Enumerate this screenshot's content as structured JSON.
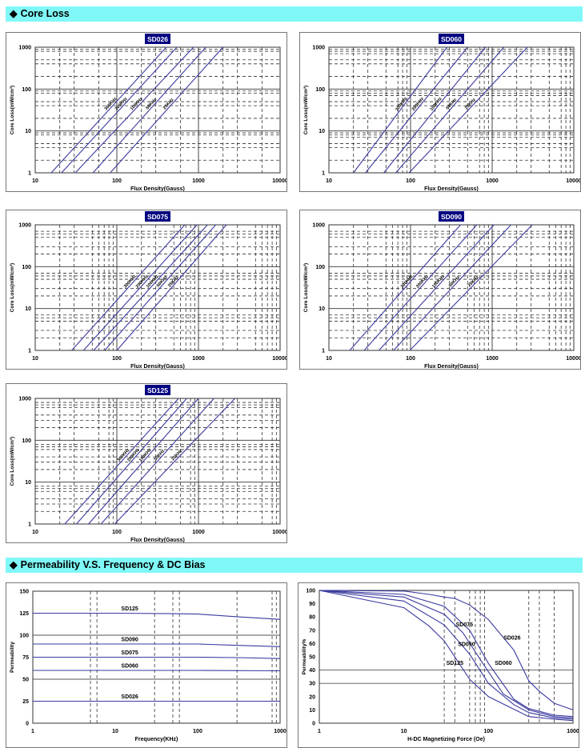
{
  "sections": {
    "core_loss": {
      "title": "Core Loss",
      "icon": "diamond-icon"
    },
    "permeability": {
      "title": "Permeability V.S. Frequency & DC Bias",
      "icon": "diamond-icon"
    }
  },
  "colors": {
    "header_bg": "#80f8f8",
    "series": "#3a3aa0",
    "badge_bg": "#000080"
  },
  "chart_data": [
    {
      "type": "line",
      "title": "SD026",
      "xlabel": "Flux Density(Gauss)",
      "ylabel": "Core Loss(mW/cm³)",
      "xscale": "log",
      "yscale": "log",
      "xlim": [
        10,
        10000
      ],
      "ylim": [
        1,
        1000
      ],
      "xticks": [
        "10",
        "100",
        "1000",
        "10000"
      ],
      "yticks": [
        "1",
        "10",
        "100",
        "1000"
      ],
      "series": [
        {
          "name": "300KHz",
          "x": [
            15.7,
            404
          ],
          "y": [
            1,
            1000
          ]
        },
        {
          "name": "200KHz",
          "x": [
            21,
            545
          ],
          "y": [
            1,
            1000
          ]
        },
        {
          "name": "100KHz",
          "x": [
            31,
            870
          ],
          "y": [
            1,
            1000
          ]
        },
        {
          "name": "50KHz",
          "x": [
            51,
            1230
          ],
          "y": [
            1,
            1000
          ]
        },
        {
          "name": "25KHz",
          "x": [
            83,
            2000
          ],
          "y": [
            1,
            1000
          ]
        }
      ]
    },
    {
      "type": "line",
      "title": "SD060",
      "xlabel": "Flux Density(Gauss)",
      "ylabel": "Core Loss(mW/cm³)",
      "xscale": "log",
      "yscale": "log",
      "xlim": [
        10,
        10000
      ],
      "ylim": [
        1,
        1000
      ],
      "xticks": [
        "10",
        "100",
        "1000",
        "10000"
      ],
      "yticks": [
        "1",
        "10",
        "100",
        "1000"
      ],
      "series": [
        {
          "name": "300KHz",
          "x": [
            20,
            280
          ],
          "y": [
            1,
            1000
          ]
        },
        {
          "name": "200KHz",
          "x": [
            28,
            500
          ],
          "y": [
            1,
            1000
          ]
        },
        {
          "name": "100KHz",
          "x": [
            47,
            830
          ],
          "y": [
            1,
            1000
          ]
        },
        {
          "name": "50KHz",
          "x": [
            66,
            1390
          ],
          "y": [
            1,
            1000
          ]
        },
        {
          "name": "25KHz",
          "x": [
            96,
            2700
          ],
          "y": [
            1,
            1000
          ]
        }
      ]
    },
    {
      "type": "line",
      "title": "SD075",
      "xlabel": "Flux Density(Gauss)",
      "ylabel": "Core Loss(mW/cm³)",
      "xscale": "log",
      "yscale": "log",
      "xlim": [
        10,
        10000
      ],
      "ylim": [
        1,
        1000
      ],
      "xticks": [
        "10",
        "100",
        "1000",
        "10000"
      ],
      "yticks": [
        "1",
        "10",
        "100",
        "1000"
      ],
      "series": [
        {
          "name": "300KHz",
          "x": [
            28,
            680
          ],
          "y": [
            1,
            1000
          ]
        },
        {
          "name": "200KHz",
          "x": [
            39,
            960
          ],
          "y": [
            1,
            1000
          ]
        },
        {
          "name": "100KHz",
          "x": [
            52,
            1290
          ],
          "y": [
            1,
            1000
          ]
        },
        {
          "name": "50KHz",
          "x": [
            71,
            1630
          ],
          "y": [
            1,
            1000
          ]
        },
        {
          "name": "25KHz",
          "x": [
            100,
            2200
          ],
          "y": [
            1,
            1000
          ]
        }
      ]
    },
    {
      "type": "line",
      "title": "SD090",
      "xlabel": "Flux Density(Gauss)",
      "ylabel": "Core Loss(mW/cm³)",
      "xscale": "log",
      "yscale": "log",
      "xlim": [
        10,
        10000
      ],
      "ylim": [
        1,
        1000
      ],
      "xticks": [
        "10",
        "100",
        "1000",
        "10000"
      ],
      "yticks": [
        "1",
        "10",
        "100",
        "1000"
      ],
      "series": [
        {
          "name": "300KHz",
          "x": [
            18,
            410
          ],
          "y": [
            1,
            1000
          ]
        },
        {
          "name": "200KHz",
          "x": [
            27,
            650
          ],
          "y": [
            1,
            1000
          ]
        },
        {
          "name": "100KHz",
          "x": [
            41,
            1050
          ],
          "y": [
            1,
            1000
          ]
        },
        {
          "name": "50KHz",
          "x": [
            62,
            1700
          ],
          "y": [
            1,
            1000
          ]
        },
        {
          "name": "25KHz",
          "x": [
            98,
            3100
          ],
          "y": [
            1,
            1000
          ]
        }
      ]
    },
    {
      "type": "line",
      "title": "SD125",
      "xlabel": "Flux Density(Gauss)",
      "ylabel": "Core Loss(mW/cm³)",
      "xscale": "log",
      "yscale": "log",
      "xlim": [
        10,
        10000
      ],
      "ylim": [
        1,
        1000
      ],
      "xticks": [
        "10",
        "100",
        "1000",
        "10000"
      ],
      "yticks": [
        "1",
        "10",
        "100",
        "1000"
      ],
      "series": [
        {
          "name": "300KHz",
          "x": [
            23,
            570
          ],
          "y": [
            1,
            1000
          ]
        },
        {
          "name": "200KHz",
          "x": [
            32,
            720
          ],
          "y": [
            1,
            1000
          ]
        },
        {
          "name": "100KHz",
          "x": [
            45,
            1000
          ],
          "y": [
            1,
            1000
          ]
        },
        {
          "name": "50KHz",
          "x": [
            64,
            1550
          ],
          "y": [
            1,
            1000
          ]
        },
        {
          "name": "25KHz",
          "x": [
            94,
            2800
          ],
          "y": [
            1,
            1000
          ]
        }
      ]
    },
    {
      "type": "line",
      "title": "",
      "xlabel": "Frequency(KHz)",
      "ylabel": "Permeability",
      "xscale": "log",
      "yscale": "linear",
      "xlim": [
        1,
        1000
      ],
      "ylim": [
        0,
        150
      ],
      "xticks": [
        "1",
        "10",
        "100",
        "1000"
      ],
      "yticks": [
        "0",
        "25",
        "50",
        "75",
        "100",
        "125",
        "150"
      ],
      "series": [
        {
          "name": "SD125",
          "x": [
            1,
            10,
            50,
            100,
            300,
            1000
          ],
          "y": [
            125,
            125,
            124.5,
            124,
            121,
            118
          ]
        },
        {
          "name": "SD090",
          "x": [
            1,
            10,
            100,
            300,
            1000
          ],
          "y": [
            90,
            90,
            90,
            88.5,
            87
          ]
        },
        {
          "name": "SD075",
          "x": [
            1,
            10,
            100,
            300,
            1000
          ],
          "y": [
            75,
            75,
            75,
            74.5,
            73.5
          ]
        },
        {
          "name": "SD060",
          "x": [
            1,
            10,
            100,
            1000
          ],
          "y": [
            60,
            60,
            60,
            59.5
          ]
        },
        {
          "name": "SD026",
          "x": [
            1,
            10,
            100,
            1000
          ],
          "y": [
            25,
            25,
            25,
            25
          ]
        }
      ]
    },
    {
      "type": "line",
      "title": "",
      "xlabel": "H-DC Magnetizing Force (Oe)",
      "ylabel": "Permeability%",
      "xscale": "log",
      "yscale": "linear",
      "xlim": [
        1,
        1000
      ],
      "ylim": [
        0,
        100
      ],
      "xticks": [
        "1",
        "10",
        "100",
        "1000"
      ],
      "yticks": [
        "0",
        "10",
        "20",
        "30",
        "40",
        "50",
        "60",
        "70",
        "80",
        "90",
        "100"
      ],
      "series": [
        {
          "name": "SD026",
          "x": [
            1,
            10,
            20,
            30,
            40,
            60,
            100,
            200,
            300,
            400,
            600,
            1000
          ],
          "y": [
            100,
            99.5,
            97,
            95,
            94,
            89,
            78,
            55,
            32,
            24,
            15,
            10
          ]
        },
        {
          "name": "SD060",
          "x": [
            1,
            10,
            30,
            60,
            100,
            200,
            300,
            600,
            1000
          ],
          "y": [
            100,
            97,
            88,
            70,
            45,
            18,
            11,
            6,
            5
          ]
        },
        {
          "name": "SD075",
          "x": [
            1,
            10,
            30,
            50,
            80,
            150,
            300,
            600,
            1000
          ],
          "y": [
            100,
            95,
            82,
            68,
            48,
            22,
            10,
            5,
            4
          ]
        },
        {
          "name": "SD090",
          "x": [
            1,
            10,
            30,
            60,
            100,
            200,
            300,
            600,
            1000
          ],
          "y": [
            100,
            92,
            74,
            52,
            30,
            14,
            8,
            4,
            3
          ]
        },
        {
          "name": "SD125",
          "x": [
            1,
            10,
            20,
            30,
            60,
            100,
            300,
            600,
            1000
          ],
          "y": [
            100,
            87,
            73,
            62,
            33,
            20,
            5,
            3,
            2
          ]
        }
      ]
    }
  ]
}
